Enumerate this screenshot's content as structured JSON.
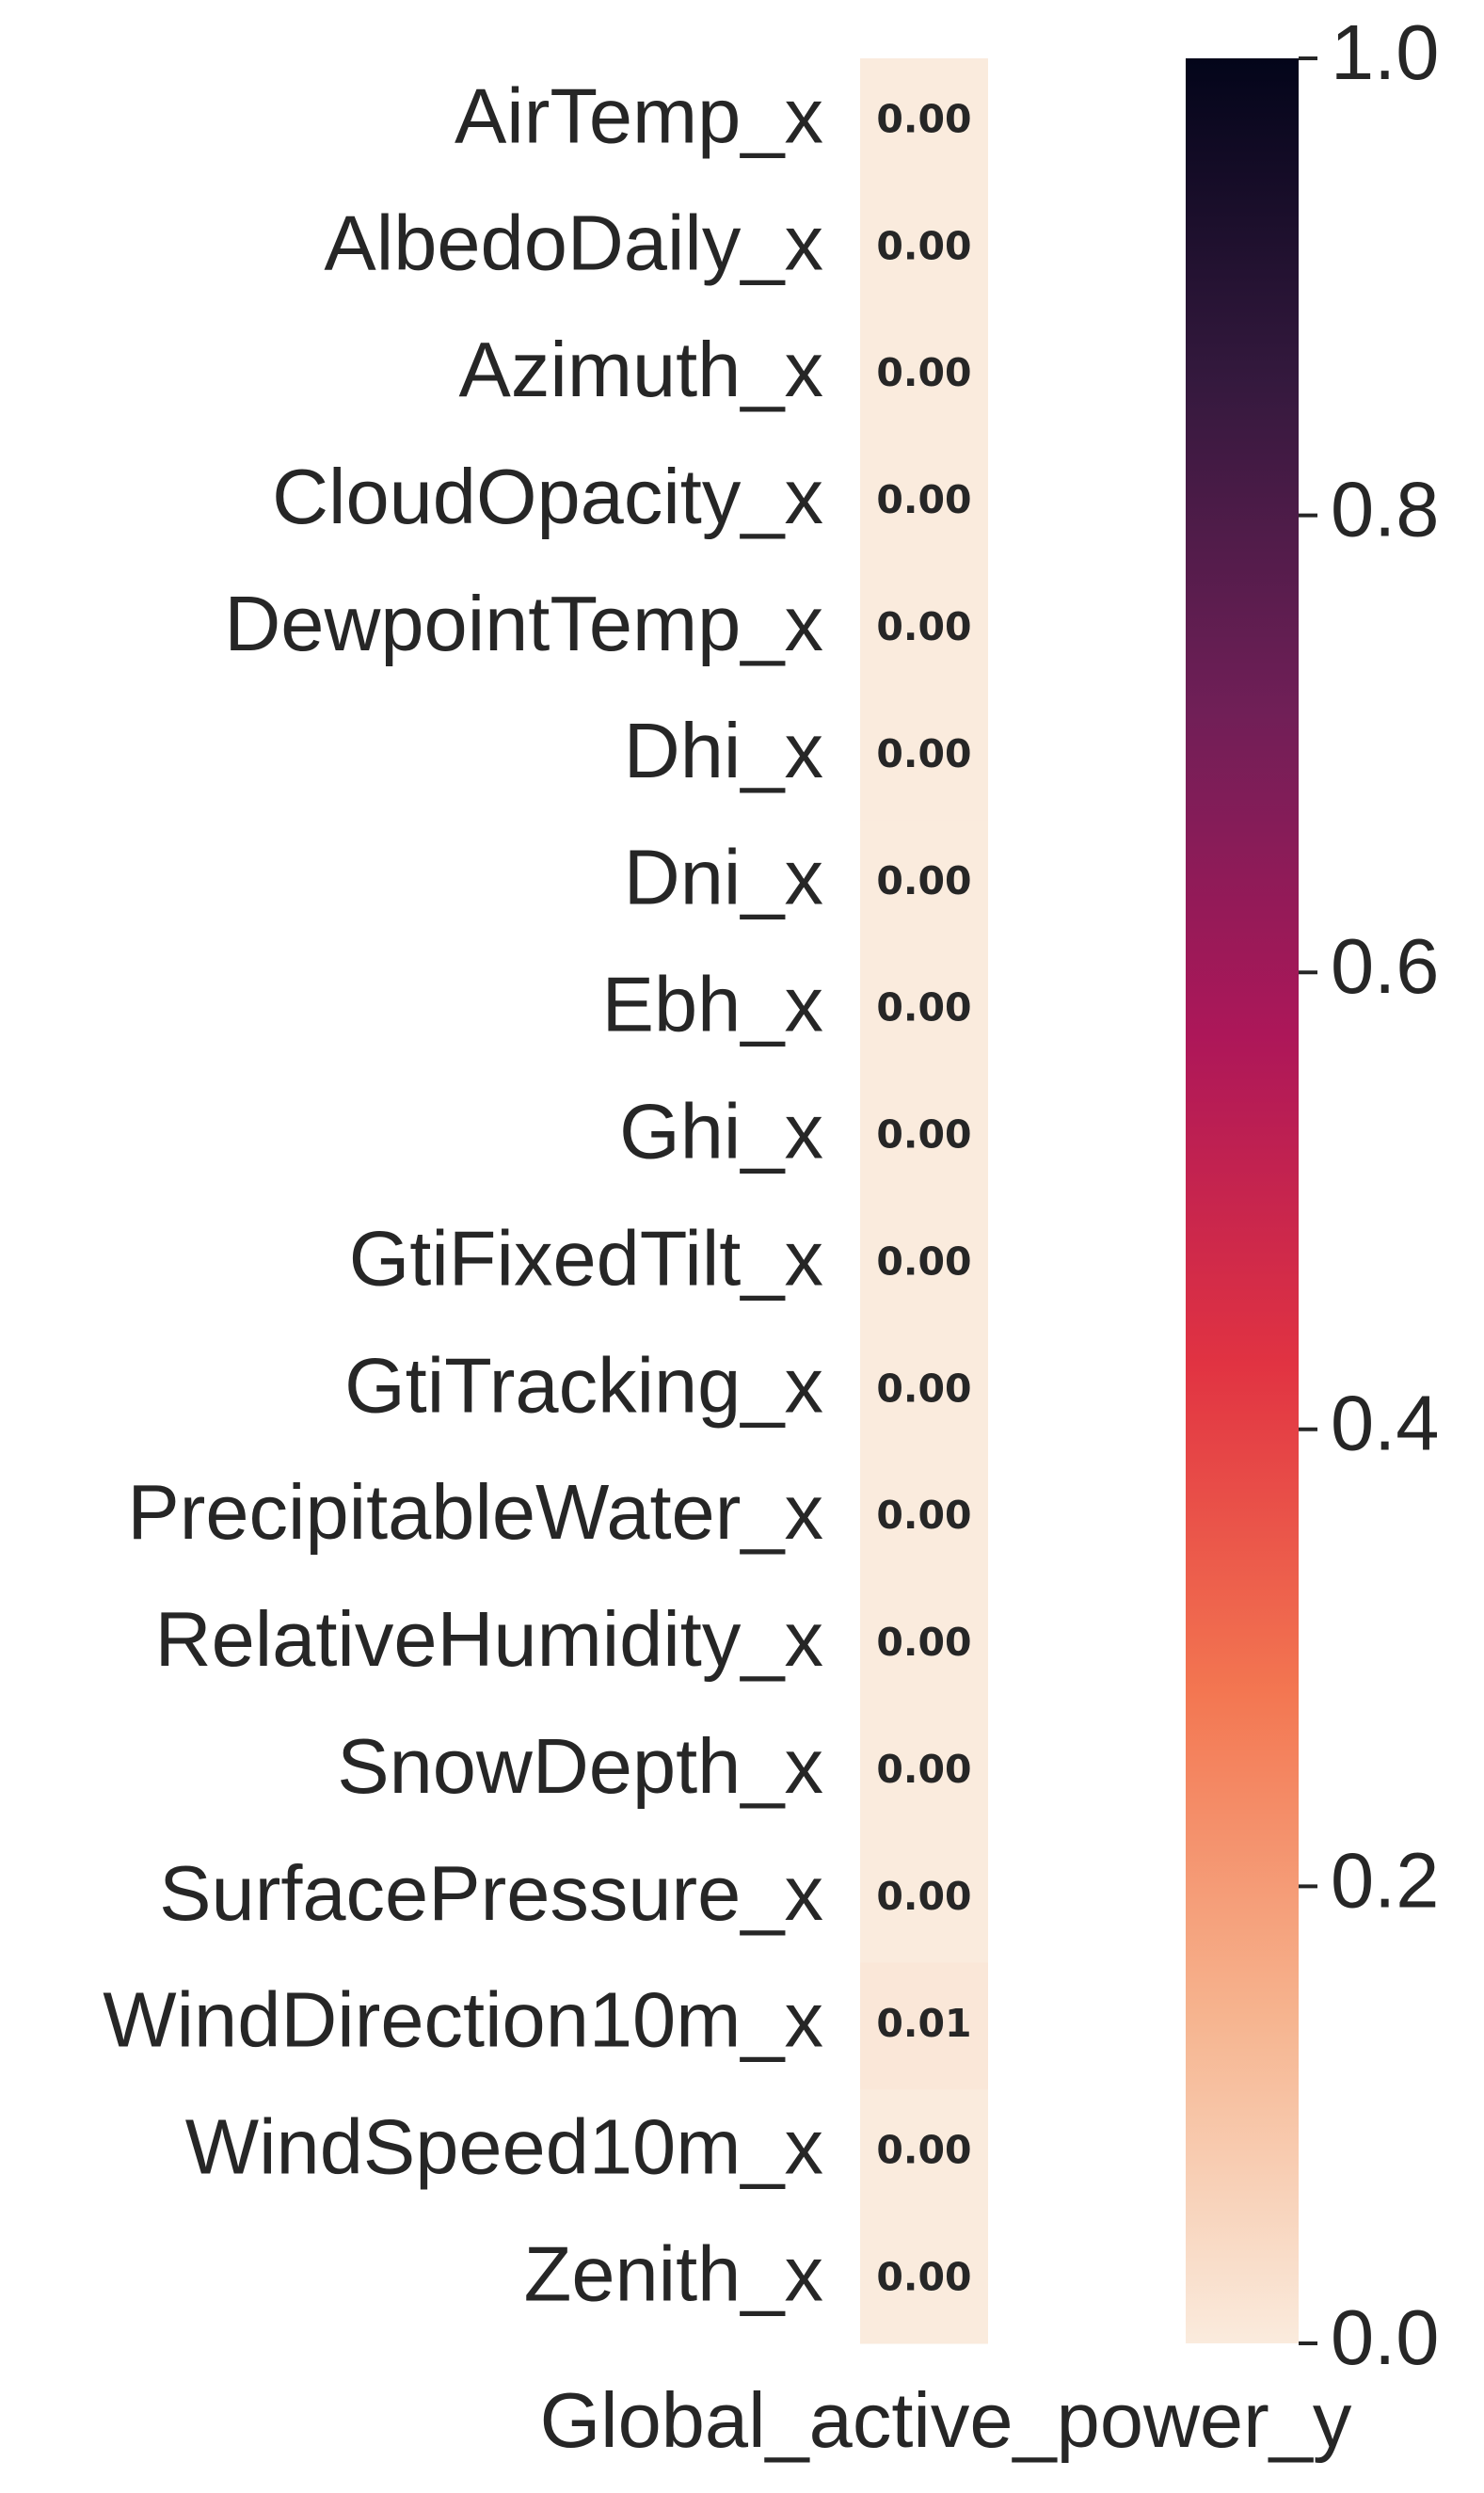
{
  "chart_data": {
    "type": "heatmap",
    "title": "",
    "xlabel": "Global_active_power_y",
    "ylabel": "",
    "columns": [
      "Global_active_power_y"
    ],
    "rows": [
      "AirTemp_x",
      "AlbedoDaily_x",
      "Azimuth_x",
      "CloudOpacity_x",
      "DewpointTemp_x",
      "Dhi_x",
      "Dni_x",
      "Ebh_x",
      "Ghi_x",
      "GtiFixedTilt_x",
      "GtiTracking_x",
      "PrecipitableWater_x",
      "RelativeHumidity_x",
      "SnowDepth_x",
      "SurfacePressure_x",
      "WindDirection10m_x",
      "WindSpeed10m_x",
      "Zenith_x"
    ],
    "values": [
      0.0,
      0.0,
      0.0,
      0.0,
      0.0,
      0.0,
      0.0,
      0.0,
      0.0,
      0.0,
      0.0,
      0.0,
      0.0,
      0.0,
      0.0,
      0.01,
      0.0,
      0.0
    ],
    "annotations": [
      "0.00",
      "0.00",
      "0.00",
      "0.00",
      "0.00",
      "0.00",
      "0.00",
      "0.00",
      "0.00",
      "0.00",
      "0.00",
      "0.00",
      "0.00",
      "0.00",
      "0.00",
      "0.01",
      "0.00",
      "0.00"
    ],
    "colorbar": {
      "range": [
        0.0,
        1.0
      ],
      "ticks": [
        0.0,
        0.2,
        0.4,
        0.6,
        0.8,
        1.0
      ],
      "tick_labels": [
        "0.0",
        "0.2",
        "0.4",
        "0.6",
        "0.8",
        "1.0"
      ],
      "colormap": "rocket_r",
      "colors": [
        "#faebdd",
        "#f6b48f",
        "#f37651",
        "#e13342",
        "#ad1759",
        "#701f57",
        "#35193e",
        "#03051a"
      ]
    }
  }
}
